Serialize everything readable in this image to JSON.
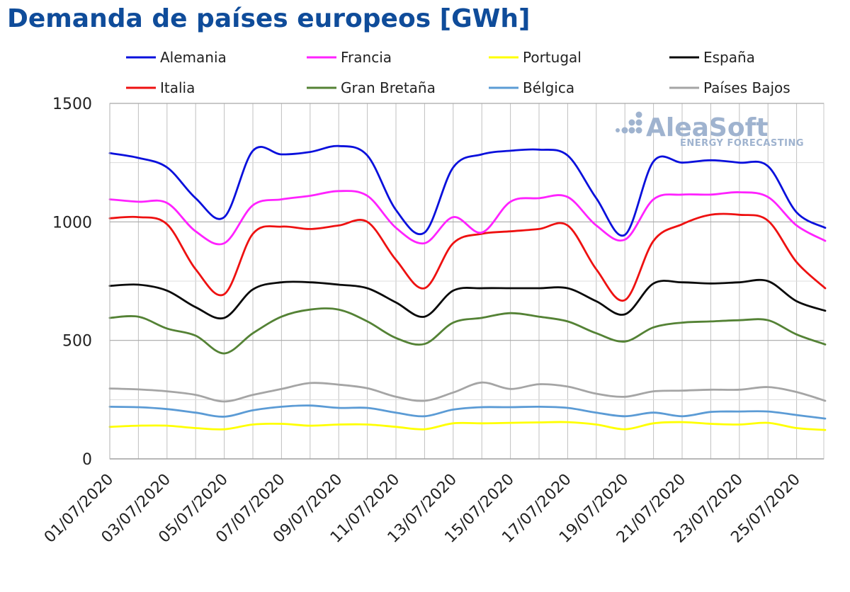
{
  "chart_data": {
    "type": "line",
    "title": "Demanda de países europeos [GWh]",
    "xlabel": "",
    "ylabel": "",
    "ylim": [
      0,
      1500
    ],
    "yticks": [
      0,
      500,
      1000,
      1500
    ],
    "xlim": [
      "01/07/2020",
      "26/07/2020"
    ],
    "x_tick_labels": [
      "01/07/2020",
      "03/07/2020",
      "05/07/2020",
      "07/07/2020",
      "09/07/2020",
      "11/07/2020",
      "13/07/2020",
      "15/07/2020",
      "17/07/2020",
      "19/07/2020",
      "21/07/2020",
      "23/07/2020",
      "25/07/2020"
    ],
    "grid": true,
    "legend_position": "top",
    "x": [
      "01/07/2020",
      "02/07/2020",
      "03/07/2020",
      "04/07/2020",
      "05/07/2020",
      "06/07/2020",
      "07/07/2020",
      "08/07/2020",
      "09/07/2020",
      "10/07/2020",
      "11/07/2020",
      "12/07/2020",
      "13/07/2020",
      "14/07/2020",
      "15/07/2020",
      "16/07/2020",
      "17/07/2020",
      "18/07/2020",
      "19/07/2020",
      "20/07/2020",
      "21/07/2020",
      "22/07/2020",
      "23/07/2020",
      "24/07/2020",
      "25/07/2020",
      "26/07/2020"
    ],
    "series": [
      {
        "name": "Alemania",
        "color": "#0a10dc",
        "values": [
          1290,
          1270,
          1230,
          1100,
          1020,
          1300,
          1285,
          1295,
          1320,
          1280,
          1050,
          955,
          1230,
          1285,
          1300,
          1305,
          1280,
          1100,
          945,
          1255,
          1250,
          1260,
          1250,
          1235,
          1040,
          975
        ]
      },
      {
        "name": "Francia",
        "color": "#ff22ff",
        "values": [
          1095,
          1085,
          1080,
          960,
          910,
          1070,
          1095,
          1110,
          1130,
          1110,
          975,
          910,
          1020,
          955,
          1085,
          1100,
          1105,
          985,
          925,
          1095,
          1115,
          1115,
          1125,
          1105,
          985,
          920
        ]
      },
      {
        "name": "Portugal",
        "color": "#ffff00",
        "values": [
          135,
          140,
          140,
          130,
          125,
          145,
          148,
          140,
          145,
          145,
          135,
          125,
          150,
          150,
          152,
          154,
          155,
          145,
          125,
          150,
          155,
          148,
          145,
          152,
          130,
          122
        ]
      },
      {
        "name": "España",
        "color": "#0a0a0a",
        "values": [
          730,
          735,
          710,
          640,
          595,
          715,
          745,
          745,
          735,
          720,
          660,
          600,
          710,
          720,
          720,
          720,
          720,
          665,
          610,
          740,
          745,
          740,
          745,
          750,
          665,
          625
        ]
      },
      {
        "name": "Italia",
        "color": "#ee1111",
        "values": [
          1015,
          1020,
          990,
          800,
          695,
          950,
          980,
          970,
          985,
          1000,
          840,
          720,
          910,
          950,
          960,
          970,
          985,
          800,
          670,
          920,
          990,
          1030,
          1030,
          1005,
          830,
          720
        ]
      },
      {
        "name": "Gran Bretaña",
        "color": "#548235",
        "values": [
          595,
          600,
          550,
          520,
          445,
          530,
          600,
          630,
          630,
          580,
          510,
          485,
          575,
          595,
          615,
          600,
          580,
          530,
          495,
          555,
          575,
          580,
          585,
          585,
          525,
          483
        ]
      },
      {
        "name": "Bélgica",
        "color": "#5b9bd5",
        "values": [
          220,
          218,
          210,
          195,
          178,
          205,
          220,
          225,
          215,
          215,
          195,
          180,
          208,
          218,
          218,
          220,
          215,
          195,
          180,
          195,
          180,
          198,
          200,
          200,
          185,
          170
        ]
      },
      {
        "name": "Países Bajos",
        "color": "#a5a5a5",
        "values": [
          297,
          293,
          285,
          270,
          242,
          270,
          295,
          320,
          313,
          298,
          262,
          245,
          280,
          322,
          295,
          315,
          305,
          275,
          262,
          285,
          288,
          292,
          292,
          303,
          282,
          245
        ]
      }
    ]
  },
  "watermark": {
    "brand": "AleaSoft",
    "tagline": "ENERGY FORECASTING"
  }
}
